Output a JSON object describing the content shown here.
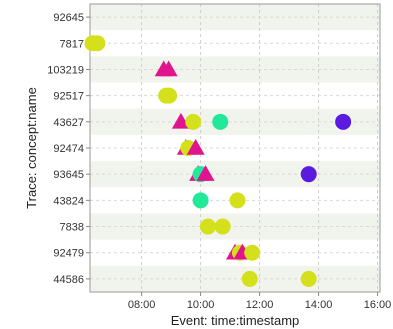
{
  "chart_data": {
    "type": "scatter",
    "title": "",
    "xlabel": "Event: time:timestamp",
    "ylabel": "Trace: concept:name",
    "xlim": [
      "06:15",
      "16:05"
    ],
    "x_ticks": [
      "08:00",
      "10:00",
      "12:00",
      "14:00",
      "16:00"
    ],
    "categories": [
      "92645",
      "7817",
      "103219",
      "92517",
      "43627",
      "92474",
      "93645",
      "43824",
      "7838",
      "92479",
      "44586"
    ],
    "grid": true,
    "legend": "none",
    "colors": {
      "yellow": "#d4e01c",
      "magenta": "#e0148c",
      "green": "#22e89a",
      "purple": "#5a1adf"
    },
    "points": [
      {
        "trace": "7817",
        "time": "06:20",
        "color": "yellow",
        "shape": "circle"
      },
      {
        "trace": "7817",
        "time": "06:30",
        "color": "yellow",
        "shape": "circle"
      },
      {
        "trace": "103219",
        "time": "08:45",
        "color": "magenta",
        "shape": "triangle"
      },
      {
        "trace": "103219",
        "time": "08:55",
        "color": "magenta",
        "shape": "triangle"
      },
      {
        "trace": "92517",
        "time": "08:50",
        "color": "yellow",
        "shape": "circle"
      },
      {
        "trace": "92517",
        "time": "08:56",
        "color": "yellow",
        "shape": "circle"
      },
      {
        "trace": "43627",
        "time": "09:20",
        "color": "magenta",
        "shape": "triangle"
      },
      {
        "trace": "43627",
        "time": "09:45",
        "color": "yellow",
        "shape": "circle"
      },
      {
        "trace": "43627",
        "time": "10:40",
        "color": "green",
        "shape": "circle"
      },
      {
        "trace": "43627",
        "time": "14:50",
        "color": "purple",
        "shape": "circle"
      },
      {
        "trace": "92474",
        "time": "09:30",
        "color": "magenta",
        "shape": "triangle"
      },
      {
        "trace": "92474",
        "time": "09:35",
        "color": "yellow",
        "shape": "circle"
      },
      {
        "trace": "92474",
        "time": "09:50",
        "color": "magenta",
        "shape": "triangle"
      },
      {
        "trace": "93645",
        "time": "09:55",
        "color": "magenta",
        "shape": "triangle"
      },
      {
        "trace": "93645",
        "time": "10:00",
        "color": "green",
        "shape": "circle"
      },
      {
        "trace": "93645",
        "time": "10:10",
        "color": "magenta",
        "shape": "triangle"
      },
      {
        "trace": "93645",
        "time": "13:40",
        "color": "purple",
        "shape": "circle"
      },
      {
        "trace": "43824",
        "time": "10:00",
        "color": "green",
        "shape": "circle"
      },
      {
        "trace": "43824",
        "time": "11:15",
        "color": "yellow",
        "shape": "circle"
      },
      {
        "trace": "7838",
        "time": "10:15",
        "color": "yellow",
        "shape": "circle"
      },
      {
        "trace": "7838",
        "time": "10:45",
        "color": "yellow",
        "shape": "circle"
      },
      {
        "trace": "92479",
        "time": "11:10",
        "color": "magenta",
        "shape": "triangle"
      },
      {
        "trace": "92479",
        "time": "11:20",
        "color": "yellow",
        "shape": "circle"
      },
      {
        "trace": "92479",
        "time": "11:25",
        "color": "magenta",
        "shape": "triangle"
      },
      {
        "trace": "92479",
        "time": "11:45",
        "color": "yellow",
        "shape": "circle"
      },
      {
        "trace": "44586",
        "time": "11:40",
        "color": "yellow",
        "shape": "circle"
      },
      {
        "trace": "44586",
        "time": "13:40",
        "color": "yellow",
        "shape": "circle"
      }
    ]
  }
}
